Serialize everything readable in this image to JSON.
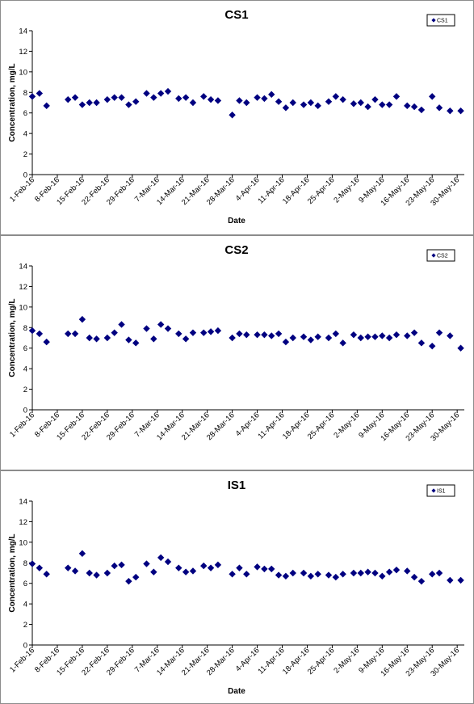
{
  "chart_data": [
    {
      "type": "scatter",
      "title": "CS1",
      "xlabel": "Date",
      "ylabel": "Concentration, mg/L",
      "ylim": [
        0,
        14
      ],
      "yticks": [
        "0",
        "2",
        "4",
        "6",
        "8",
        "10",
        "12",
        "14"
      ],
      "xlim": [
        "1-Feb-16",
        "1-Jun-16"
      ],
      "xticks": [
        "1-Feb-16",
        "8-Feb-16",
        "15-Feb-16",
        "22-Feb-16",
        "29-Feb-16",
        "7-Mar-16",
        "14-Mar-16",
        "21-Mar-16",
        "28-Mar-16",
        "4-Apr-16",
        "11-Apr-16",
        "18-Apr-16",
        "25-Apr-16",
        "2-May-16",
        "9-May-16",
        "16-May-16",
        "23-May-16",
        "30-May-16"
      ],
      "grid": false,
      "legend_position": "top-right",
      "series": [
        {
          "name": "CS1",
          "color": "#000080",
          "marker": "diamond",
          "x": [
            "1-Feb-16",
            "3-Feb-16",
            "5-Feb-16",
            "11-Feb-16",
            "13-Feb-16",
            "15-Feb-16",
            "17-Feb-16",
            "19-Feb-16",
            "22-Feb-16",
            "24-Feb-16",
            "26-Feb-16",
            "28-Feb-16",
            "1-Mar-16",
            "4-Mar-16",
            "6-Mar-16",
            "8-Mar-16",
            "10-Mar-16",
            "13-Mar-16",
            "15-Mar-16",
            "17-Mar-16",
            "20-Mar-16",
            "22-Mar-16",
            "24-Mar-16",
            "28-Mar-16",
            "30-Mar-16",
            "1-Apr-16",
            "4-Apr-16",
            "6-Apr-16",
            "8-Apr-16",
            "10-Apr-16",
            "12-Apr-16",
            "14-Apr-16",
            "17-Apr-16",
            "19-Apr-16",
            "21-Apr-16",
            "24-Apr-16",
            "26-Apr-16",
            "28-Apr-16",
            "1-May-16",
            "3-May-16",
            "5-May-16",
            "7-May-16",
            "9-May-16",
            "11-May-16",
            "13-May-16",
            "16-May-16",
            "18-May-16",
            "20-May-16",
            "23-May-16",
            "25-May-16",
            "28-May-16",
            "31-May-16"
          ],
          "y": [
            7.6,
            7.9,
            6.7,
            7.3,
            7.5,
            6.8,
            7.0,
            7.0,
            7.3,
            7.5,
            7.5,
            6.8,
            7.1,
            7.9,
            7.5,
            7.9,
            8.1,
            7.4,
            7.5,
            7.0,
            7.6,
            7.3,
            7.2,
            5.8,
            7.2,
            7.0,
            7.5,
            7.4,
            7.8,
            7.1,
            6.5,
            7.0,
            6.8,
            7.0,
            6.7,
            7.1,
            7.6,
            7.3,
            6.9,
            7.0,
            6.6,
            7.3,
            6.8,
            6.8,
            7.6,
            6.7,
            6.6,
            6.3,
            7.6,
            6.5,
            6.2,
            6.2
          ]
        }
      ]
    },
    {
      "type": "scatter",
      "title": "CS2",
      "xlabel": "",
      "ylabel": "Concentration, mg/L",
      "ylim": [
        0,
        14
      ],
      "yticks": [
        "0",
        "2",
        "4",
        "6",
        "8",
        "10",
        "12",
        "14"
      ],
      "xlim": [
        "1-Feb-16",
        "1-Jun-16"
      ],
      "xticks": [
        "1-Feb-16",
        "8-Feb-16",
        "15-Feb-16",
        "22-Feb-16",
        "29-Feb-16",
        "7-Mar-16",
        "14-Mar-16",
        "21-Mar-16",
        "28-Mar-16",
        "4-Apr-16",
        "11-Apr-16",
        "18-Apr-16",
        "25-Apr-16",
        "2-May-16",
        "9-May-16",
        "16-May-16",
        "23-May-16",
        "30-May-16"
      ],
      "grid": false,
      "legend_position": "top-right",
      "series": [
        {
          "name": "CS2",
          "color": "#000080",
          "marker": "diamond",
          "x": [
            "1-Feb-16",
            "3-Feb-16",
            "5-Feb-16",
            "11-Feb-16",
            "13-Feb-16",
            "15-Feb-16",
            "17-Feb-16",
            "19-Feb-16",
            "22-Feb-16",
            "24-Feb-16",
            "26-Feb-16",
            "28-Feb-16",
            "1-Mar-16",
            "4-Mar-16",
            "6-Mar-16",
            "8-Mar-16",
            "10-Mar-16",
            "13-Mar-16",
            "15-Mar-16",
            "17-Mar-16",
            "20-Mar-16",
            "22-Mar-16",
            "24-Mar-16",
            "28-Mar-16",
            "30-Mar-16",
            "1-Apr-16",
            "4-Apr-16",
            "6-Apr-16",
            "8-Apr-16",
            "10-Apr-16",
            "12-Apr-16",
            "14-Apr-16",
            "17-Apr-16",
            "19-Apr-16",
            "21-Apr-16",
            "24-Apr-16",
            "26-Apr-16",
            "28-Apr-16",
            "1-May-16",
            "3-May-16",
            "5-May-16",
            "7-May-16",
            "9-May-16",
            "11-May-16",
            "13-May-16",
            "16-May-16",
            "18-May-16",
            "20-May-16",
            "23-May-16",
            "25-May-16",
            "28-May-16",
            "31-May-16"
          ],
          "y": [
            7.7,
            7.4,
            6.6,
            7.4,
            7.4,
            8.8,
            7.0,
            6.9,
            7.0,
            7.5,
            8.3,
            6.8,
            6.5,
            7.9,
            6.9,
            8.3,
            7.9,
            7.4,
            6.9,
            7.5,
            7.5,
            7.6,
            7.7,
            7.0,
            7.4,
            7.3,
            7.3,
            7.3,
            7.2,
            7.4,
            6.6,
            7.0,
            7.1,
            6.8,
            7.1,
            7.0,
            7.4,
            6.5,
            7.3,
            7.0,
            7.1,
            7.1,
            7.2,
            7.0,
            7.3,
            7.2,
            7.5,
            6.5,
            6.2,
            7.5,
            7.2,
            6.0
          ]
        }
      ]
    },
    {
      "type": "scatter",
      "title": "IS1",
      "xlabel": "Date",
      "ylabel": "Concentration, mg/L",
      "ylim": [
        0,
        14
      ],
      "yticks": [
        "0",
        "2",
        "4",
        "6",
        "8",
        "10",
        "12",
        "14"
      ],
      "xlim": [
        "1-Feb-16",
        "1-Jun-16"
      ],
      "xticks": [
        "1-Feb-16",
        "8-Feb-16",
        "15-Feb-16",
        "22-Feb-16",
        "29-Feb-16",
        "7-Mar-16",
        "14-Mar-16",
        "21-Mar-16",
        "28-Mar-16",
        "4-Apr-16",
        "11-Apr-16",
        "18-Apr-16",
        "25-Apr-16",
        "2-May-16",
        "9-May-16",
        "16-May-16",
        "23-May-16",
        "30-May-16"
      ],
      "grid": false,
      "legend_position": "top-right",
      "series": [
        {
          "name": "IS1",
          "color": "#000080",
          "marker": "diamond",
          "x": [
            "1-Feb-16",
            "3-Feb-16",
            "5-Feb-16",
            "11-Feb-16",
            "13-Feb-16",
            "15-Feb-16",
            "17-Feb-16",
            "19-Feb-16",
            "22-Feb-16",
            "24-Feb-16",
            "26-Feb-16",
            "28-Feb-16",
            "1-Mar-16",
            "4-Mar-16",
            "6-Mar-16",
            "8-Mar-16",
            "10-Mar-16",
            "13-Mar-16",
            "15-Mar-16",
            "17-Mar-16",
            "20-Mar-16",
            "22-Mar-16",
            "24-Mar-16",
            "28-Mar-16",
            "30-Mar-16",
            "1-Apr-16",
            "4-Apr-16",
            "6-Apr-16",
            "8-Apr-16",
            "10-Apr-16",
            "12-Apr-16",
            "14-Apr-16",
            "17-Apr-16",
            "19-Apr-16",
            "21-Apr-16",
            "24-Apr-16",
            "26-Apr-16",
            "28-Apr-16",
            "1-May-16",
            "3-May-16",
            "5-May-16",
            "7-May-16",
            "9-May-16",
            "11-May-16",
            "13-May-16",
            "16-May-16",
            "18-May-16",
            "20-May-16",
            "23-May-16",
            "25-May-16",
            "28-May-16",
            "31-May-16"
          ],
          "y": [
            7.9,
            7.5,
            6.9,
            7.5,
            7.2,
            8.9,
            7.0,
            6.8,
            7.0,
            7.7,
            7.8,
            6.2,
            6.6,
            7.9,
            7.1,
            8.5,
            8.1,
            7.5,
            7.1,
            7.2,
            7.7,
            7.5,
            7.8,
            6.9,
            7.5,
            6.9,
            7.6,
            7.4,
            7.4,
            6.8,
            6.7,
            7.0,
            7.0,
            6.7,
            6.9,
            6.8,
            6.6,
            6.9,
            7.0,
            7.0,
            7.1,
            7.0,
            6.7,
            7.1,
            7.3,
            7.2,
            6.6,
            6.2,
            6.9,
            7.0,
            6.3,
            6.3
          ]
        }
      ]
    }
  ]
}
